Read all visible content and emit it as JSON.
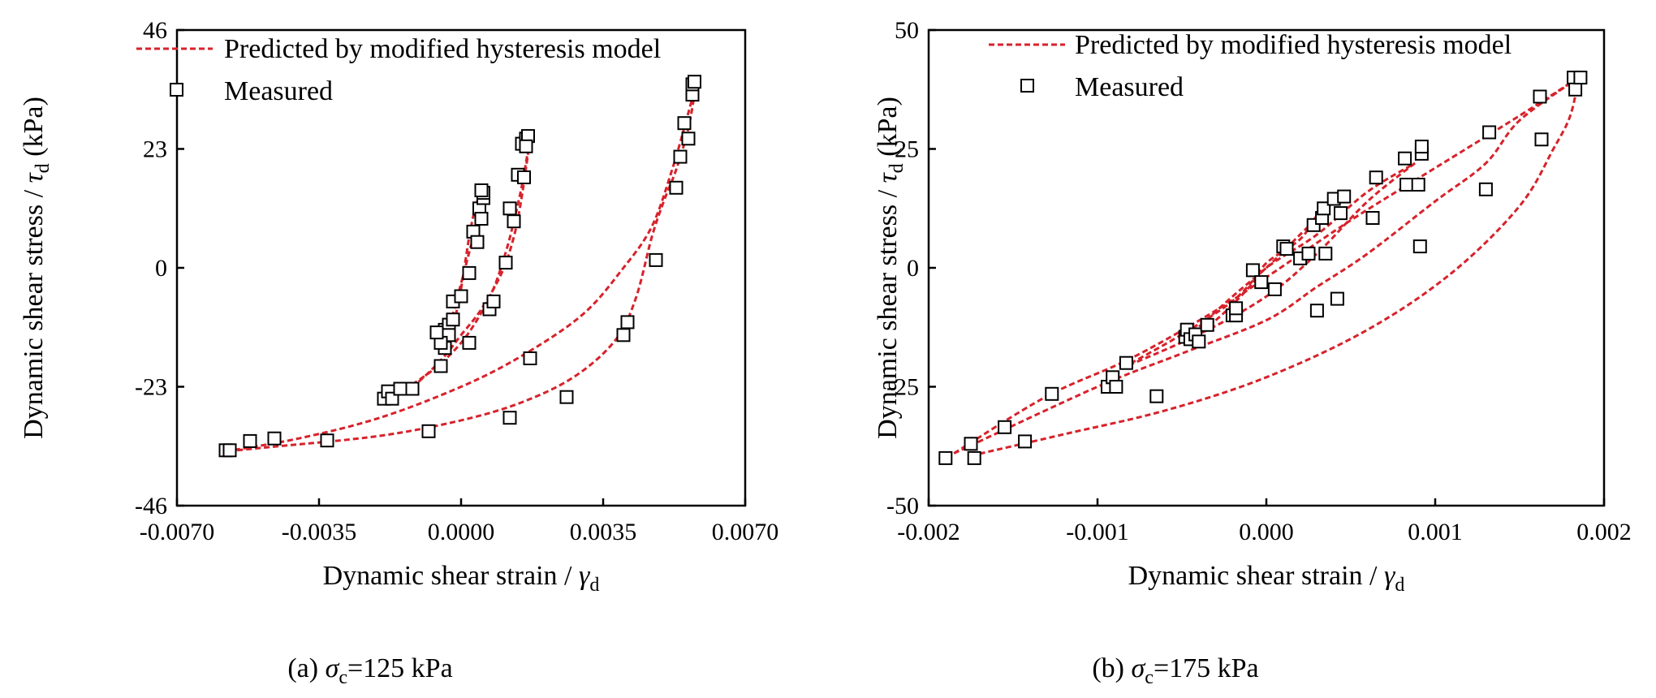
{
  "chart_data": [
    {
      "type": "scatter",
      "panel_caption": "(a) σc=125 kPa",
      "caption_parts": {
        "open": "(a) ",
        "sym": "σ",
        "sub": "c",
        "rest": "=125 kPa"
      },
      "xlabel": {
        "text": "Dynamic shear strain / ",
        "sym": "γ",
        "sub": "d"
      },
      "ylabel": {
        "text": "Dynamic shear stress / ",
        "sym": "τ",
        "sub": "d",
        "unit": " (kPa)"
      },
      "xlim": [
        -0.007,
        0.007
      ],
      "ylim": [
        -46,
        46
      ],
      "xticks": [
        "-0.0070",
        "-0.0035",
        "0.0000",
        "0.0035",
        "0.0070"
      ],
      "yticks": [
        "-46",
        "-23",
        "0",
        "23",
        "46"
      ],
      "grid": false,
      "legend": {
        "placement": "top-left",
        "entries": [
          "Predicted by modified hysteresis model",
          "Measured"
        ]
      },
      "series": [
        {
          "name": "Predicted by modified hysteresis model",
          "kind": "curves",
          "color": "#d7222b",
          "curves": [
            [
              [
                -0.0003,
                -16
              ],
              [
                -0.0002,
                -12
              ],
              [
                -0.0001,
                -8
              ],
              [
                0.0,
                -4
              ],
              [
                0.0001,
                1
              ],
              [
                0.0002,
                6
              ],
              [
                0.0003,
                10
              ],
              [
                0.0004,
                13
              ],
              [
                0.00055,
                15
              ]
            ],
            [
              [
                0.00055,
                15
              ],
              [
                0.0004,
                9
              ],
              [
                0.0002,
                3
              ],
              [
                0.0,
                -3
              ],
              [
                -0.0002,
                -9
              ],
              [
                -0.0003,
                -13
              ],
              [
                -0.0004,
                -17
              ]
            ],
            [
              [
                -0.0018,
                -25.5
              ],
              [
                -0.0013,
                -23.5
              ],
              [
                -0.0009,
                -21
              ],
              [
                -0.0004,
                -17
              ],
              [
                0.0,
                -13
              ],
              [
                0.0005,
                -8
              ],
              [
                0.001,
                -1
              ],
              [
                0.0013,
                6
              ],
              [
                0.0015,
                14
              ],
              [
                0.0017,
                25
              ]
            ],
            [
              [
                0.0017,
                25
              ],
              [
                0.0015,
                16
              ],
              [
                0.0013,
                9
              ],
              [
                0.0011,
                3
              ],
              [
                0.0008,
                -4
              ],
              [
                0.0004,
                -10
              ],
              [
                0.0,
                -14.5
              ],
              [
                -0.0005,
                -18.5
              ],
              [
                -0.001,
                -21.5
              ],
              [
                -0.0018,
                -25.5
              ]
            ],
            [
              [
                -0.0058,
                -35.5
              ],
              [
                -0.004,
                -33
              ],
              [
                -0.002,
                -29
              ],
              [
                0.0,
                -23
              ],
              [
                0.0015,
                -17
              ],
              [
                0.003,
                -9
              ],
              [
                0.004,
                0
              ],
              [
                0.0047,
                8
              ],
              [
                0.0052,
                19
              ],
              [
                0.0056,
                30
              ],
              [
                0.0058,
                36
              ]
            ],
            [
              [
                0.0058,
                36
              ],
              [
                0.0056,
                27
              ],
              [
                0.0053,
                19
              ],
              [
                0.005,
                13
              ],
              [
                0.0047,
                6
              ],
              [
                0.0043,
                -6
              ],
              [
                0.0038,
                -14
              ],
              [
                0.0028,
                -21
              ],
              [
                0.0015,
                -26
              ],
              [
                0.0,
                -29.5
              ],
              [
                -0.002,
                -32.5
              ],
              [
                -0.0045,
                -34.5
              ],
              [
                -0.0058,
                -35.5
              ]
            ]
          ]
        },
        {
          "name": "Measured",
          "kind": "markers",
          "color": "#000000",
          "points": [
            [
              -0.0058,
              -35.3
            ],
            [
              -0.0057,
              -35.3
            ],
            [
              -0.0052,
              -33.5
            ],
            [
              -0.0046,
              -33
            ],
            [
              -0.0033,
              -33.4
            ],
            [
              -0.0008,
              -31.6
            ],
            [
              0.0012,
              -29
            ],
            [
              0.0026,
              -25
            ],
            [
              0.0017,
              -17.5
            ],
            [
              -0.0019,
              -25.3
            ],
            [
              -0.0018,
              -23.9
            ],
            [
              -0.0017,
              -25.3
            ],
            [
              -0.0015,
              -23.4
            ],
            [
              -0.0012,
              -23.4
            ],
            [
              -0.0005,
              -19
            ],
            [
              -0.0004,
              -15.5
            ],
            [
              -0.0004,
              -12
            ],
            [
              -0.0003,
              -11
            ],
            [
              -0.0002,
              -10
            ],
            [
              -0.0003,
              -13
            ],
            [
              -0.0005,
              -14.5
            ],
            [
              -0.0006,
              -12.5
            ],
            [
              -0.0002,
              -6.5
            ],
            [
              0.0,
              -5.5
            ],
            [
              0.0002,
              -1
            ],
            [
              0.0003,
              7
            ],
            [
              0.0004,
              5
            ],
            [
              0.00045,
              11.5
            ],
            [
              0.0005,
              9.5
            ],
            [
              0.00055,
              13.5
            ],
            [
              0.00055,
              14.5
            ],
            [
              0.0005,
              15
            ],
            [
              0.0002,
              -14.5
            ],
            [
              0.0007,
              -8
            ],
            [
              0.0008,
              -6.5
            ],
            [
              0.0011,
              1
            ],
            [
              0.0012,
              11.5
            ],
            [
              0.0013,
              9
            ],
            [
              0.0014,
              18
            ],
            [
              0.0015,
              24
            ],
            [
              0.00155,
              17.5
            ],
            [
              0.0016,
              25
            ],
            [
              0.00165,
              25.5
            ],
            [
              0.0016,
              23.5
            ],
            [
              0.004,
              -13
            ],
            [
              0.0041,
              -10.5
            ],
            [
              0.0048,
              1.5
            ],
            [
              0.0053,
              15.5
            ],
            [
              0.0054,
              21.5
            ],
            [
              0.0055,
              28
            ],
            [
              0.0056,
              25
            ],
            [
              0.0057,
              33.5
            ],
            [
              0.0057,
              35.5
            ],
            [
              0.00575,
              36
            ]
          ]
        }
      ]
    },
    {
      "type": "scatter",
      "panel_caption": "(b) σc=175 kPa",
      "caption_parts": {
        "open": "(b) ",
        "sym": "σ",
        "sub": "c",
        "rest": "=175 kPa"
      },
      "xlabel": {
        "text": "Dynamic shear strain / ",
        "sym": "γ",
        "sub": "d"
      },
      "ylabel": {
        "text": "Dynamic shear stress / ",
        "sym": "τ",
        "sub": "d",
        "unit": " (kPa)"
      },
      "xlim": [
        -0.002,
        0.002
      ],
      "ylim": [
        -50,
        50
      ],
      "xticks": [
        "-0.002",
        "-0.001",
        "0.000",
        "0.001",
        "0.002"
      ],
      "yticks": [
        "-50",
        "-25",
        "0",
        "25",
        "50"
      ],
      "grid": false,
      "legend": {
        "placement": "top-left",
        "entries": [
          "Predicted by modified hysteresis model",
          "Measured"
        ]
      },
      "series": [
        {
          "name": "Predicted by modified hysteresis model",
          "kind": "curves",
          "color": "#d7222b",
          "curves": [
            [
              [
                -0.00048,
                -15
              ],
              [
                -0.0003,
                -11
              ],
              [
                -0.0001,
                -4
              ],
              [
                0.0,
                1
              ],
              [
                0.0002,
                6
              ],
              [
                0.0003,
                11
              ],
              [
                0.0004,
                14
              ]
            ],
            [
              [
                0.0004,
                14
              ],
              [
                0.0002,
                7
              ],
              [
                0.0,
                0
              ],
              [
                -0.0002,
                -6
              ],
              [
                -0.00048,
                -15
              ]
            ],
            [
              [
                -0.00085,
                -21
              ],
              [
                -0.0005,
                -14
              ],
              [
                -0.0002,
                -7
              ],
              [
                0.0,
                0
              ],
              [
                0.0003,
                7
              ],
              [
                0.0006,
                16
              ],
              [
                0.00088,
                22
              ]
            ],
            [
              [
                0.00088,
                22
              ],
              [
                0.0006,
                14
              ],
              [
                0.0003,
                3
              ],
              [
                0.0,
                -6
              ],
              [
                -0.0004,
                -14
              ],
              [
                -0.00085,
                -21
              ]
            ],
            [
              [
                -0.00185,
                -39
              ],
              [
                -0.0013,
                -27
              ],
              [
                -0.0008,
                -19
              ],
              [
                -0.0003,
                -9
              ],
              [
                0.0,
                -2
              ],
              [
                0.0005,
                10
              ],
              [
                0.001,
                21
              ],
              [
                0.0015,
                32
              ],
              [
                0.00185,
                40
              ]
            ],
            [
              [
                0.00185,
                40
              ],
              [
                0.0015,
                31
              ],
              [
                0.0013,
                22
              ],
              [
                0.001,
                14
              ],
              [
                0.0006,
                3
              ],
              [
                0.0003,
                -4
              ],
              [
                0.0,
                -11
              ],
              [
                -0.0005,
                -18
              ],
              [
                -0.001,
                -25
              ],
              [
                -0.00185,
                -39
              ]
            ],
            [
              [
                -0.00175,
                -39.5
              ],
              [
                -0.0012,
                -35
              ],
              [
                -0.0006,
                -30
              ],
              [
                0.0,
                -23
              ],
              [
                0.0006,
                -13
              ],
              [
                0.0011,
                -1
              ],
              [
                0.0015,
                13
              ],
              [
                0.0017,
                25
              ],
              [
                0.0018,
                32
              ],
              [
                0.00185,
                40
              ]
            ]
          ]
        },
        {
          "name": "Measured",
          "kind": "markers",
          "color": "#000000",
          "points": [
            [
              -0.0019,
              -40
            ],
            [
              -0.00175,
              -37
            ],
            [
              -0.00173,
              -40
            ],
            [
              -0.00155,
              -33.5
            ],
            [
              -0.00143,
              -36.5
            ],
            [
              -0.00127,
              -26.5
            ],
            [
              -0.00094,
              -25
            ],
            [
              -0.00091,
              -23
            ],
            [
              -0.00089,
              -25
            ],
            [
              -0.00083,
              -20
            ],
            [
              -0.00065,
              -27
            ],
            [
              -0.00048,
              -14.5
            ],
            [
              -0.00047,
              -13
            ],
            [
              -0.00045,
              -15
            ],
            [
              -0.00042,
              -14
            ],
            [
              -0.0004,
              -15.5
            ],
            [
              -0.00035,
              -12
            ],
            [
              -0.0002,
              -10
            ],
            [
              -0.00018,
              -10
            ],
            [
              -0.00018,
              -8.5
            ],
            [
              -8e-05,
              -0.5
            ],
            [
              -3e-05,
              -3
            ],
            [
              5e-05,
              -4.5
            ],
            [
              0.0001,
              4.5
            ],
            [
              0.00012,
              4
            ],
            [
              0.0002,
              2
            ],
            [
              0.00025,
              3
            ],
            [
              0.00028,
              9
            ],
            [
              0.0003,
              -9
            ],
            [
              0.00033,
              10.5
            ],
            [
              0.00034,
              12.5
            ],
            [
              0.00035,
              3
            ],
            [
              0.0004,
              14.5
            ],
            [
              0.00042,
              -6.5
            ],
            [
              0.00044,
              11.5
            ],
            [
              0.00046,
              15
            ],
            [
              0.00063,
              10.5
            ],
            [
              0.00065,
              19
            ],
            [
              0.00082,
              23
            ],
            [
              0.00083,
              17.5
            ],
            [
              0.0009,
              17.5
            ],
            [
              0.00091,
              4.5
            ],
            [
              0.00092,
              24
            ],
            [
              0.00092,
              25.5
            ],
            [
              0.0013,
              16.5
            ],
            [
              0.00132,
              28.5
            ],
            [
              0.00162,
              36
            ],
            [
              0.00163,
              27
            ],
            [
              0.00182,
              40
            ],
            [
              0.00183,
              37.5
            ],
            [
              0.00186,
              40
            ]
          ]
        }
      ]
    }
  ]
}
